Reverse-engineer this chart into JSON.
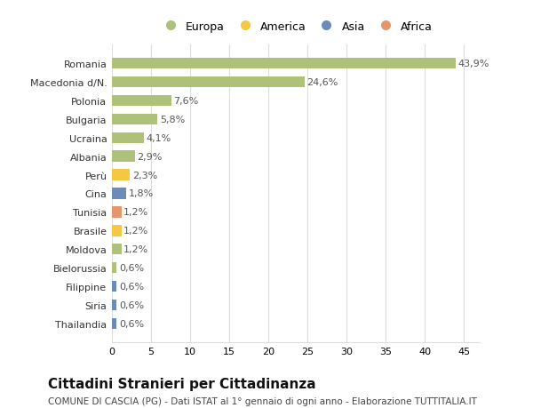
{
  "countries": [
    "Romania",
    "Macedonia d/N.",
    "Polonia",
    "Bulgaria",
    "Ucraina",
    "Albania",
    "Perù",
    "Cina",
    "Tunisia",
    "Brasile",
    "Moldova",
    "Bielorussia",
    "Filippine",
    "Siria",
    "Thailandia"
  ],
  "values": [
    43.9,
    24.6,
    7.6,
    5.8,
    4.1,
    2.9,
    2.3,
    1.8,
    1.2,
    1.2,
    1.2,
    0.6,
    0.6,
    0.6,
    0.6
  ],
  "colors": [
    "#adc178",
    "#adc178",
    "#adc178",
    "#adc178",
    "#adc178",
    "#adc178",
    "#f5c842",
    "#6b8cba",
    "#e8956d",
    "#f5c842",
    "#adc178",
    "#adc178",
    "#6b8cba",
    "#6b8cba",
    "#6b8cba"
  ],
  "labels": [
    "43,9%",
    "24,6%",
    "7,6%",
    "5,8%",
    "4,1%",
    "2,9%",
    "2,3%",
    "1,8%",
    "1,2%",
    "1,2%",
    "1,2%",
    "0,6%",
    "0,6%",
    "0,6%",
    "0,6%"
  ],
  "legend_labels": [
    "Europa",
    "America",
    "Asia",
    "Africa"
  ],
  "legend_colors": [
    "#adc178",
    "#f5c842",
    "#6b8cba",
    "#e8956d"
  ],
  "title": "Cittadini Stranieri per Cittadinanza",
  "subtitle": "COMUNE DI CASCIA (PG) - Dati ISTAT al 1° gennaio di ogni anno - Elaborazione TUTTITALIA.IT",
  "xlim": [
    0,
    47
  ],
  "xticks": [
    0,
    5,
    10,
    15,
    20,
    25,
    30,
    35,
    40,
    45
  ],
  "background_color": "#ffffff",
  "grid_color": "#dddddd",
  "bar_height": 0.6,
  "label_fontsize": 8,
  "tick_fontsize": 8,
  "title_fontsize": 11,
  "subtitle_fontsize": 7.5
}
